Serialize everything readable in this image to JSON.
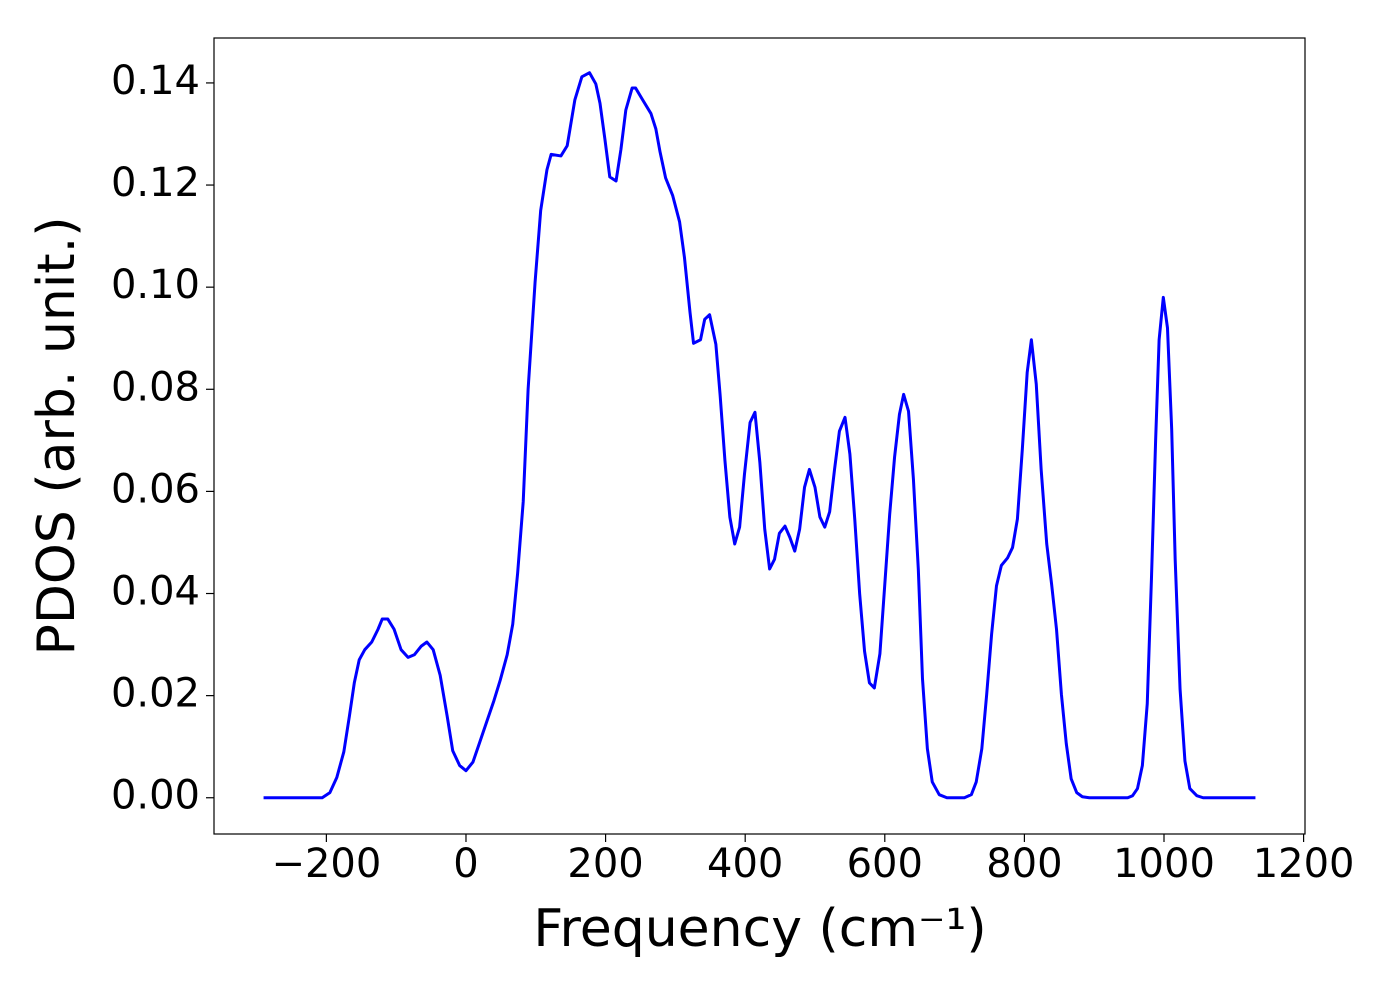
{
  "chart_data": {
    "type": "line",
    "xlabel": "Frequency (cm⁻¹)",
    "ylabel": "PDOS (arb. unit.)",
    "xlim": [
      -361,
      1202
    ],
    "ylim": [
      -0.0071,
      0.1488
    ],
    "xticks": [
      {
        "value": -200,
        "label": "−200"
      },
      0,
      200,
      400,
      600,
      800,
      1000,
      1200
    ],
    "yticks": [
      {
        "value": 0,
        "label": "0.00"
      },
      {
        "value": 0.02,
        "label": "0.02"
      },
      {
        "value": 0.04,
        "label": "0.04"
      },
      {
        "value": 0.06,
        "label": "0.06"
      },
      {
        "value": 0.08,
        "label": "0.08"
      },
      {
        "value": 0.1,
        "label": "0.10"
      },
      {
        "value": 0.12,
        "label": "0.12"
      },
      {
        "value": 0.14,
        "label": "0.14"
      }
    ],
    "x": [
      -290,
      -206,
      -195,
      -185,
      -175,
      -167,
      -160,
      -153,
      -145,
      -135,
      -126,
      -120,
      -112,
      -103,
      -93,
      -83,
      -74,
      -64,
      -56,
      -47,
      -37,
      -27,
      -19,
      -9,
      0,
      10,
      20,
      30,
      40,
      49,
      59,
      67,
      74,
      82,
      89,
      99,
      107,
      116,
      122,
      136,
      145,
      156,
      166,
      177,
      186,
      192,
      199,
      206,
      215,
      222,
      229,
      238,
      243,
      253,
      265,
      272,
      278,
      286,
      296,
      306,
      313,
      321,
      326,
      336,
      342,
      349,
      358,
      364,
      371,
      378,
      385,
      392,
      399,
      407,
      414,
      421,
      428,
      435,
      442,
      449,
      457,
      464,
      471,
      478,
      485,
      492,
      500,
      507,
      514,
      521,
      528,
      535,
      543,
      550,
      557,
      564,
      571,
      578,
      585,
      593,
      600,
      607,
      614,
      621,
      627,
      634,
      641,
      648,
      654,
      661,
      668,
      678,
      689,
      714,
      724,
      731,
      739,
      746,
      753,
      760,
      767,
      776,
      783,
      790,
      797,
      804,
      810,
      817,
      824,
      832,
      839,
      846,
      853,
      860,
      867,
      875,
      883,
      893,
      948,
      955,
      962,
      969,
      976,
      982,
      988,
      993,
      999,
      1005,
      1011,
      1016,
      1023,
      1030,
      1037,
      1047,
      1056,
      1131
    ],
    "series": [
      {
        "color": "#0000ff",
        "values": [
          0,
          0,
          0.001,
          0.004,
          0.009,
          0.016,
          0.0225,
          0.027,
          0.029,
          0.0305,
          0.033,
          0.035,
          0.035,
          0.033,
          0.029,
          0.0275,
          0.028,
          0.0297,
          0.0305,
          0.029,
          0.024,
          0.016,
          0.0092,
          0.0063,
          0.0053,
          0.007,
          0.011,
          0.015,
          0.019,
          0.023,
          0.028,
          0.034,
          0.044,
          0.058,
          0.08,
          0.101,
          0.115,
          0.123,
          0.126,
          0.1257,
          0.1277,
          0.1367,
          0.1412,
          0.142,
          0.1398,
          0.136,
          0.129,
          0.1216,
          0.1208,
          0.127,
          0.1347,
          0.139,
          0.139,
          0.1367,
          0.134,
          0.131,
          0.1265,
          0.1214,
          0.118,
          0.1128,
          0.1058,
          0.095,
          0.089,
          0.0897,
          0.0937,
          0.0946,
          0.0888,
          0.079,
          0.066,
          0.055,
          0.0497,
          0.053,
          0.0634,
          0.0735,
          0.0755,
          0.0657,
          0.0526,
          0.0448,
          0.0467,
          0.0518,
          0.0532,
          0.051,
          0.0483,
          0.0526,
          0.0608,
          0.0643,
          0.0608,
          0.055,
          0.053,
          0.056,
          0.0643,
          0.0718,
          0.0745,
          0.0673,
          0.0545,
          0.0399,
          0.0287,
          0.0225,
          0.0215,
          0.0282,
          0.0418,
          0.0555,
          0.0667,
          0.0751,
          0.079,
          0.0757,
          0.0624,
          0.0448,
          0.0233,
          0.0096,
          0.0031,
          0.0006,
          0,
          0,
          0.0006,
          0.0031,
          0.0096,
          0.0203,
          0.032,
          0.0415,
          0.0455,
          0.047,
          0.049,
          0.0546,
          0.0682,
          0.0833,
          0.0897,
          0.081,
          0.0643,
          0.0497,
          0.0418,
          0.033,
          0.0203,
          0.0106,
          0.0037,
          0.001,
          0.0002,
          0,
          0,
          0.0004,
          0.0018,
          0.0063,
          0.0184,
          0.0428,
          0.07,
          0.0897,
          0.098,
          0.092,
          0.0722,
          0.0467,
          0.0213,
          0.0072,
          0.0018,
          0.0004,
          0,
          0
        ]
      }
    ]
  }
}
